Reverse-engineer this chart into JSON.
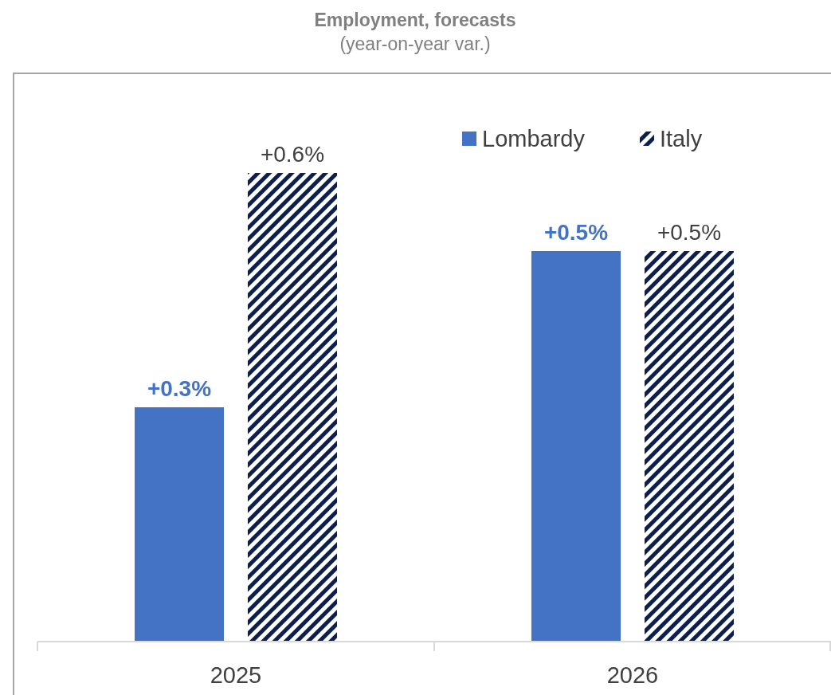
{
  "chart_data": {
    "type": "bar",
    "title": "Employment, forecasts",
    "subtitle": "(year-on-year var.)",
    "categories": [
      "2025",
      "2026"
    ],
    "series": [
      {
        "name": "Lombardy",
        "color": "#4472c4",
        "values": [
          0.3,
          0.5
        ],
        "value_labels": [
          "+0.3%",
          "+0.5%"
        ]
      },
      {
        "name": "Italy",
        "color": "#0d1f4d",
        "values": [
          0.6,
          0.5
        ],
        "value_labels": [
          "+0.6%",
          "+0.5%"
        ]
      }
    ],
    "legend": "top right",
    "grid": false
  }
}
